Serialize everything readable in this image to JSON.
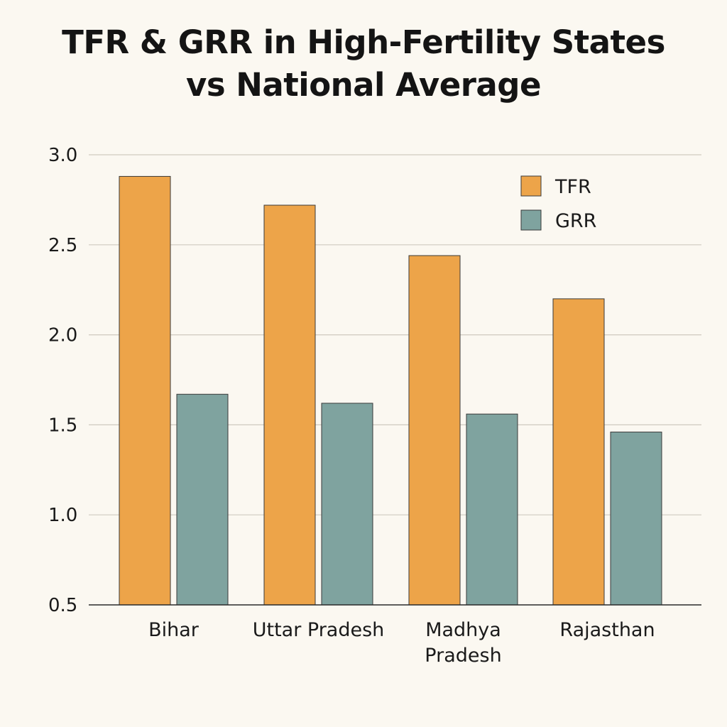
{
  "chart_data": {
    "type": "bar",
    "title_lines": [
      "TFR & GRR in High-Fertility States",
      "vs National Average"
    ],
    "categories": [
      [
        "Bihar"
      ],
      [
        "Uttar Pradesh"
      ],
      [
        "Madhya",
        "Pradesh"
      ],
      [
        "Rajasthan"
      ]
    ],
    "series": [
      {
        "name": "TFR",
        "color": "#eda449",
        "values": [
          2.88,
          2.72,
          2.44,
          2.2
        ]
      },
      {
        "name": "GRR",
        "color": "#7fa39f",
        "values": [
          1.67,
          1.62,
          1.56,
          1.46
        ]
      }
    ],
    "ylim": [
      0.5,
      3.0
    ],
    "yticks": [
      "3.0",
      "2.5",
      "2.0",
      "1.5",
      "1.0",
      "0.5"
    ],
    "grid": true,
    "legend_position": "top-right",
    "xlabel": "",
    "ylabel": ""
  }
}
